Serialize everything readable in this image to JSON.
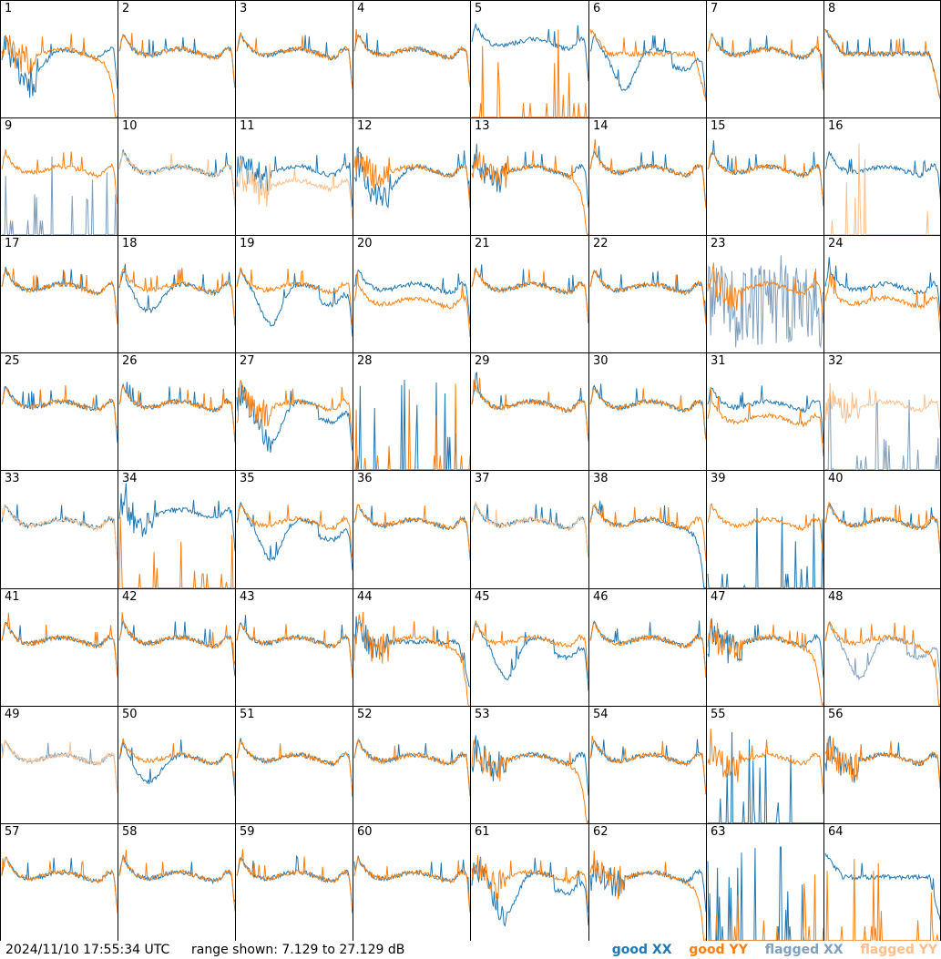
{
  "footer": {
    "timestamp": "2024/11/10 17:55:34 UTC",
    "range_text": "range shown: 7.129 to 27.129 dB"
  },
  "legend": [
    {
      "label": "good XX",
      "color": "#1f77b4"
    },
    {
      "label": "good YY",
      "color": "#ff7f0e"
    },
    {
      "label": "flagged XX",
      "color": "#7f9fbf"
    },
    {
      "label": "flagged YY",
      "color": "#ffbf8a"
    }
  ],
  "chart_data": {
    "type": "line",
    "ylim": [
      7.129,
      27.129
    ],
    "yunit": "dB",
    "grid": "8x8",
    "panels": [
      {
        "label": "1",
        "xx": "good",
        "yy": "good",
        "xx_pat": "droop",
        "yy_pat": "rolloff",
        "noise": "high"
      },
      {
        "label": "2",
        "xx": "good",
        "yy": "good",
        "xx_pat": "normal",
        "yy_pat": "normal",
        "noise": "normal"
      },
      {
        "label": "3",
        "xx": "good",
        "yy": "good",
        "xx_pat": "normal",
        "yy_pat": "normal",
        "noise": "normal"
      },
      {
        "label": "4",
        "xx": "good",
        "yy": "good",
        "xx_pat": "normal",
        "yy_pat": "normal",
        "noise": "normal"
      },
      {
        "label": "5",
        "xx": "good",
        "yy": "good",
        "xx_pat": "high",
        "yy_pat": "dead",
        "noise": "normal"
      },
      {
        "label": "6",
        "xx": "good",
        "yy": "good",
        "xx_pat": "dip",
        "yy_pat": "flat",
        "noise": "normal"
      },
      {
        "label": "7",
        "xx": "good",
        "yy": "good",
        "xx_pat": "normal",
        "yy_pat": "normal",
        "noise": "normal"
      },
      {
        "label": "8",
        "xx": "good",
        "yy": "good",
        "xx_pat": "flat",
        "yy_pat": "flat",
        "noise": "normal"
      },
      {
        "label": "9",
        "xx": "flagged",
        "yy": "good",
        "xx_pat": "dead",
        "yy_pat": "normal",
        "noise": "normal"
      },
      {
        "label": "10",
        "xx": "good",
        "yy": "flagged",
        "xx_pat": "normal",
        "yy_pat": "normal",
        "noise": "normal"
      },
      {
        "label": "11",
        "xx": "good",
        "yy": "flagged",
        "xx_pat": "normal",
        "yy_pat": "low",
        "noise": "high"
      },
      {
        "label": "12",
        "xx": "good",
        "yy": "good",
        "xx_pat": "droop",
        "yy_pat": "normal",
        "noise": "high"
      },
      {
        "label": "13",
        "xx": "good",
        "yy": "good",
        "xx_pat": "normal",
        "yy_pat": "rolloff",
        "noise": "high"
      },
      {
        "label": "14",
        "xx": "good",
        "yy": "good",
        "xx_pat": "normal",
        "yy_pat": "normal",
        "noise": "normal"
      },
      {
        "label": "15",
        "xx": "good",
        "yy": "good",
        "xx_pat": "normal",
        "yy_pat": "normal",
        "noise": "normal"
      },
      {
        "label": "16",
        "xx": "good",
        "yy": "flagged",
        "xx_pat": "normal",
        "yy_pat": "dead",
        "noise": "normal"
      },
      {
        "label": "17",
        "xx": "good",
        "yy": "good",
        "xx_pat": "normal",
        "yy_pat": "normal",
        "noise": "normal"
      },
      {
        "label": "18",
        "xx": "good",
        "yy": "good",
        "xx_pat": "droop",
        "yy_pat": "normal",
        "noise": "normal"
      },
      {
        "label": "19",
        "xx": "good",
        "yy": "good",
        "xx_pat": "dip",
        "yy_pat": "normal",
        "noise": "normal"
      },
      {
        "label": "20",
        "xx": "good",
        "yy": "good",
        "xx_pat": "normal",
        "yy_pat": "low",
        "noise": "normal"
      },
      {
        "label": "21",
        "xx": "good",
        "yy": "good",
        "xx_pat": "normal",
        "yy_pat": "normal",
        "noise": "normal"
      },
      {
        "label": "22",
        "xx": "good",
        "yy": "good",
        "xx_pat": "normal",
        "yy_pat": "normal",
        "noise": "normal"
      },
      {
        "label": "23",
        "xx": "flagged",
        "yy": "good",
        "xx_pat": "noisy",
        "yy_pat": "normal",
        "noise": "high"
      },
      {
        "label": "24",
        "xx": "good",
        "yy": "good",
        "xx_pat": "normal",
        "yy_pat": "low",
        "noise": "normal"
      },
      {
        "label": "25",
        "xx": "good",
        "yy": "good",
        "xx_pat": "normal",
        "yy_pat": "normal",
        "noise": "normal"
      },
      {
        "label": "26",
        "xx": "good",
        "yy": "good",
        "xx_pat": "normal",
        "yy_pat": "normal",
        "noise": "normal"
      },
      {
        "label": "27",
        "xx": "good",
        "yy": "good",
        "xx_pat": "dip",
        "yy_pat": "normal",
        "noise": "high"
      },
      {
        "label": "28",
        "xx": "good",
        "yy": "good",
        "xx_pat": "dead",
        "yy_pat": "dead",
        "noise": "high"
      },
      {
        "label": "29",
        "xx": "good",
        "yy": "good",
        "xx_pat": "normal",
        "yy_pat": "normal",
        "noise": "normal"
      },
      {
        "label": "30",
        "xx": "good",
        "yy": "good",
        "xx_pat": "normal",
        "yy_pat": "normal",
        "noise": "normal"
      },
      {
        "label": "31",
        "xx": "good",
        "yy": "good",
        "xx_pat": "normal",
        "yy_pat": "low",
        "noise": "normal"
      },
      {
        "label": "32",
        "xx": "flagged",
        "yy": "flagged",
        "xx_pat": "dead",
        "yy_pat": "normal",
        "noise": "high"
      },
      {
        "label": "33",
        "xx": "good",
        "yy": "flagged",
        "xx_pat": "normal",
        "yy_pat": "normal",
        "noise": "normal"
      },
      {
        "label": "34",
        "xx": "good",
        "yy": "good",
        "xx_pat": "high",
        "yy_pat": "dead",
        "noise": "high"
      },
      {
        "label": "35",
        "xx": "good",
        "yy": "good",
        "xx_pat": "dip",
        "yy_pat": "normal",
        "noise": "normal"
      },
      {
        "label": "36",
        "xx": "good",
        "yy": "good",
        "xx_pat": "normal",
        "yy_pat": "normal",
        "noise": "normal"
      },
      {
        "label": "37",
        "xx": "good",
        "yy": "flagged",
        "xx_pat": "normal",
        "yy_pat": "normal",
        "noise": "normal"
      },
      {
        "label": "38",
        "xx": "good",
        "yy": "good",
        "xx_pat": "rolloff",
        "yy_pat": "normal",
        "noise": "normal"
      },
      {
        "label": "39",
        "xx": "good",
        "yy": "good",
        "xx_pat": "dead",
        "yy_pat": "normal",
        "noise": "normal"
      },
      {
        "label": "40",
        "xx": "good",
        "yy": "good",
        "xx_pat": "normal",
        "yy_pat": "normal",
        "noise": "normal"
      },
      {
        "label": "41",
        "xx": "good",
        "yy": "good",
        "xx_pat": "normal",
        "yy_pat": "normal",
        "noise": "normal"
      },
      {
        "label": "42",
        "xx": "good",
        "yy": "good",
        "xx_pat": "normal",
        "yy_pat": "normal",
        "noise": "normal"
      },
      {
        "label": "43",
        "xx": "good",
        "yy": "good",
        "xx_pat": "normal",
        "yy_pat": "normal",
        "noise": "normal"
      },
      {
        "label": "44",
        "xx": "good",
        "yy": "good",
        "xx_pat": "flat",
        "yy_pat": "rolloff",
        "noise": "high"
      },
      {
        "label": "45",
        "xx": "good",
        "yy": "good",
        "xx_pat": "dip",
        "yy_pat": "normal",
        "noise": "normal"
      },
      {
        "label": "46",
        "xx": "good",
        "yy": "good",
        "xx_pat": "normal",
        "yy_pat": "normal",
        "noise": "normal"
      },
      {
        "label": "47",
        "xx": "good",
        "yy": "good",
        "xx_pat": "normal",
        "yy_pat": "rolloff",
        "noise": "high"
      },
      {
        "label": "48",
        "xx": "flagged",
        "yy": "good",
        "xx_pat": "dip",
        "yy_pat": "rolloff",
        "noise": "normal"
      },
      {
        "label": "49",
        "xx": "flagged",
        "yy": "flagged",
        "xx_pat": "normal",
        "yy_pat": "normal",
        "noise": "normal"
      },
      {
        "label": "50",
        "xx": "good",
        "yy": "good",
        "xx_pat": "droop",
        "yy_pat": "normal",
        "noise": "normal"
      },
      {
        "label": "51",
        "xx": "good",
        "yy": "good",
        "xx_pat": "normal",
        "yy_pat": "normal",
        "noise": "normal"
      },
      {
        "label": "52",
        "xx": "good",
        "yy": "good",
        "xx_pat": "normal",
        "yy_pat": "normal",
        "noise": "normal"
      },
      {
        "label": "53",
        "xx": "good",
        "yy": "good",
        "xx_pat": "normal",
        "yy_pat": "rolloff",
        "noise": "high"
      },
      {
        "label": "54",
        "xx": "good",
        "yy": "good",
        "xx_pat": "normal",
        "yy_pat": "normal",
        "noise": "normal"
      },
      {
        "label": "55",
        "xx": "good",
        "yy": "good",
        "xx_pat": "dead",
        "yy_pat": "normal",
        "noise": "high"
      },
      {
        "label": "56",
        "xx": "good",
        "yy": "good",
        "xx_pat": "normal",
        "yy_pat": "normal",
        "noise": "high"
      },
      {
        "label": "57",
        "xx": "good",
        "yy": "good",
        "xx_pat": "normal",
        "yy_pat": "normal",
        "noise": "normal"
      },
      {
        "label": "58",
        "xx": "good",
        "yy": "good",
        "xx_pat": "normal",
        "yy_pat": "normal",
        "noise": "normal"
      },
      {
        "label": "59",
        "xx": "good",
        "yy": "good",
        "xx_pat": "normal",
        "yy_pat": "normal",
        "noise": "normal"
      },
      {
        "label": "60",
        "xx": "good",
        "yy": "good",
        "xx_pat": "normal",
        "yy_pat": "normal",
        "noise": "normal"
      },
      {
        "label": "61",
        "xx": "good",
        "yy": "good",
        "xx_pat": "dip",
        "yy_pat": "normal",
        "noise": "high"
      },
      {
        "label": "62",
        "xx": "good",
        "yy": "good",
        "xx_pat": "normal",
        "yy_pat": "rolloff",
        "noise": "high"
      },
      {
        "label": "63",
        "xx": "good",
        "yy": "good",
        "xx_pat": "dead",
        "yy_pat": "dead",
        "noise": "high"
      },
      {
        "label": "64",
        "xx": "good",
        "yy": "good",
        "xx_pat": "flat",
        "yy_pat": "dead",
        "noise": "normal"
      }
    ]
  }
}
